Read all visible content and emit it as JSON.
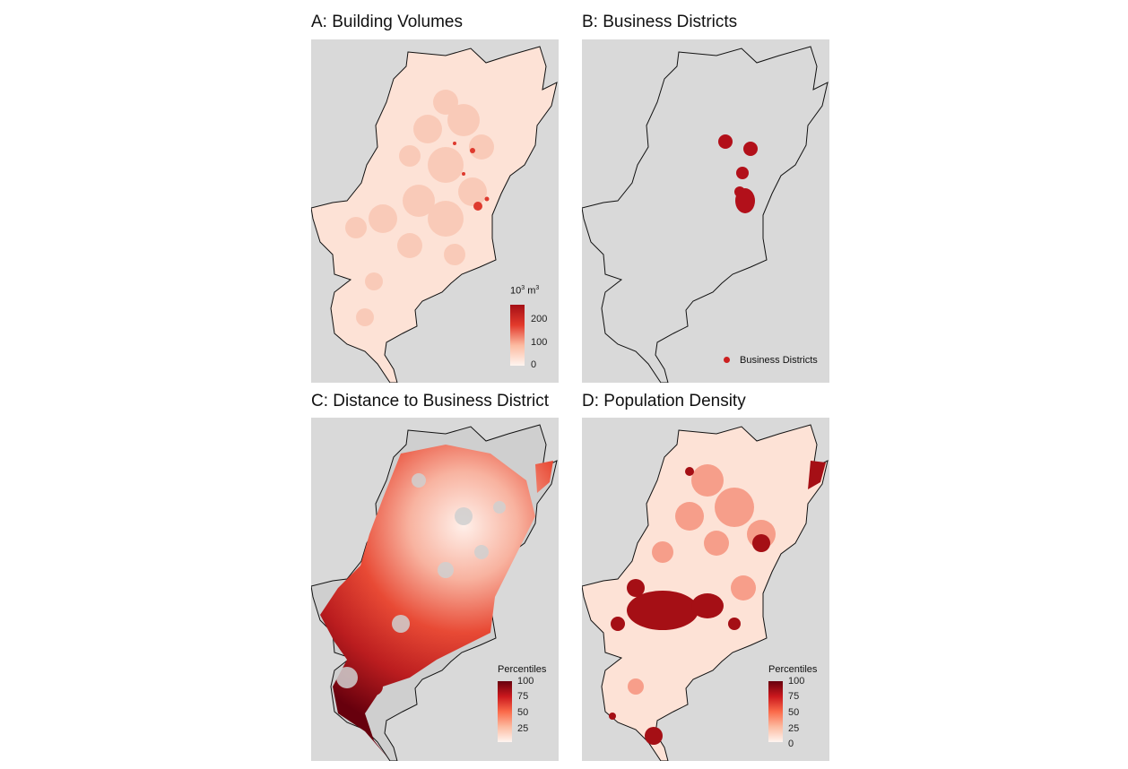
{
  "panels": {
    "a": {
      "title": "A: Building Volumes",
      "legend": {
        "title_base": "10",
        "title_exp1": "3",
        "title_mid": " m",
        "title_exp2": "3",
        "ticks": [
          "200",
          "100",
          "0"
        ],
        "color_low": "#fde0d2",
        "color_high": "#a50f15"
      }
    },
    "b": {
      "title": "B: Business Districts",
      "legend": {
        "item": "Business Districts",
        "color": "#cc1f1f"
      }
    },
    "c": {
      "title": "C: Distance to Business District",
      "legend": {
        "title": "Percentiles",
        "ticks": [
          "100",
          "75",
          "50",
          "25"
        ],
        "color_low": "#fff0ea",
        "color_high": "#67000d"
      }
    },
    "d": {
      "title": "D: Population Density",
      "legend": {
        "title": "Percentiles",
        "ticks": [
          "100",
          "75",
          "50",
          "25",
          "0"
        ],
        "color_low": "#fff0ea",
        "color_high": "#67000d"
      }
    }
  },
  "colors": {
    "map_background": "#d9d9d9",
    "outline": "#111111",
    "choropleth_light": "#fde2d6",
    "choropleth_dark": "#a50f15",
    "business_district": "#b2101a"
  }
}
